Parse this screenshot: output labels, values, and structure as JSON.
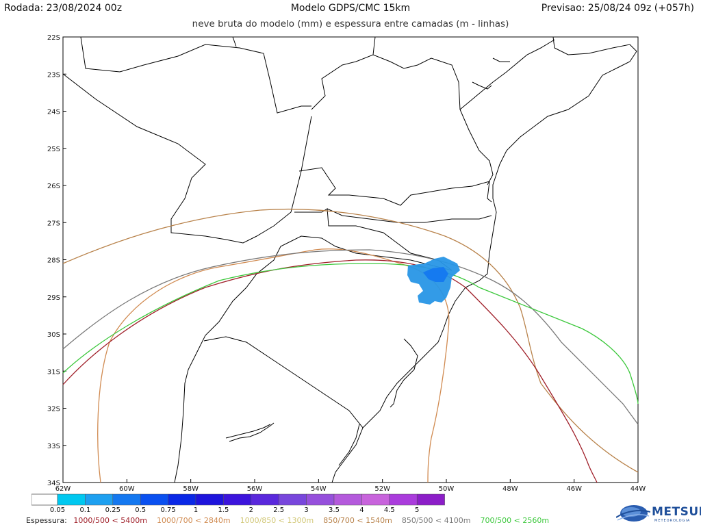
{
  "header": {
    "left": "Rodada: 23/08/2024 00z",
    "center": "Modelo GDPS/CMC 15km",
    "right": "Previsao: 25/08/24 09z (+057h)",
    "subtitle": "neve bruta do modelo (mm) e espessura entre camadas (m - linhas)"
  },
  "map": {
    "lat_labels": [
      "22S",
      "23S",
      "24S",
      "25S",
      "26S",
      "27S",
      "28S",
      "29S",
      "30S",
      "31S",
      "32S",
      "33S",
      "34S"
    ],
    "lon_labels": [
      "62W",
      "60W",
      "58W",
      "56W",
      "54W",
      "52W",
      "50W",
      "48W",
      "46W",
      "44W"
    ],
    "border_color": "#000000"
  },
  "colorbar": {
    "labels": [
      "0.05",
      "0.1",
      "0.25",
      "0.5",
      "0.75",
      "1",
      "1.5",
      "2",
      "2.5",
      "3",
      "3.5",
      "4",
      "4.5",
      "5"
    ],
    "colors": [
      "#00c8f0",
      "#1ea0f0",
      "#1478f0",
      "#0a50f0",
      "#0a28e6",
      "#1e14dc",
      "#3c14dc",
      "#5a28dc",
      "#7846dc",
      "#9650dc",
      "#b45adc",
      "#c864dc",
      "#aa3cdc",
      "#8c1ec8"
    ]
  },
  "legend": {
    "title": "Espessura:",
    "items": [
      {
        "label": "1000/500 < 5400m",
        "color": "#a0202a"
      },
      {
        "label": "1000/700 < 2840m",
        "color": "#d08a50"
      },
      {
        "label": "1000/850 < 1300m",
        "color": "#d2c878"
      },
      {
        "label": "850/700 < 1540m",
        "color": "#b8824a"
      },
      {
        "label": "850/500 < 4100m",
        "color": "#787878"
      },
      {
        "label": "700/500 < 2560m",
        "color": "#3cc83c"
      }
    ]
  },
  "snow_color": "#2896e6",
  "logo": {
    "text": "METSUL",
    "subtext": "METEOROLOGIA"
  }
}
